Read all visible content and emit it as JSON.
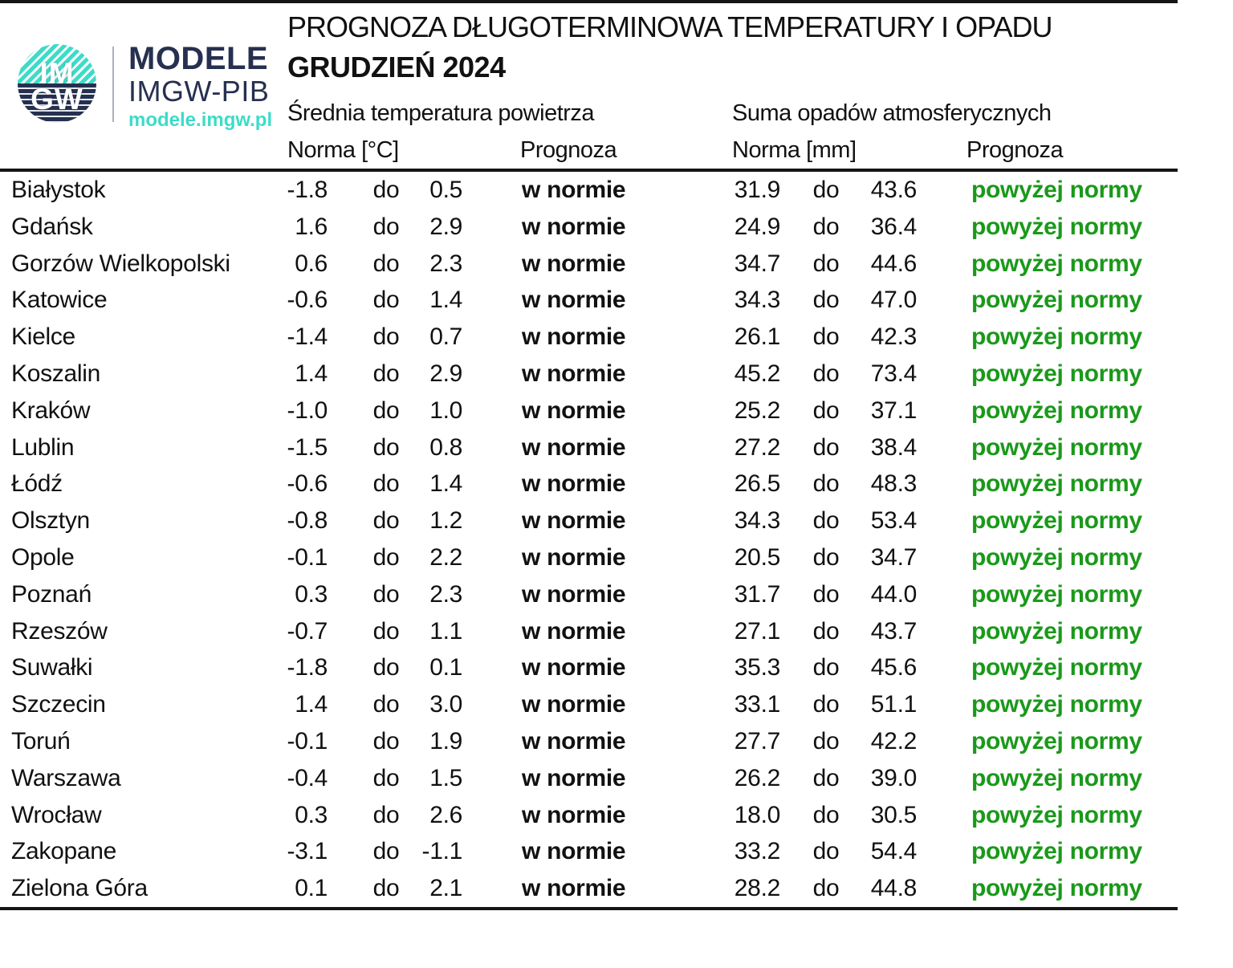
{
  "logo": {
    "im": "IM",
    "gw": "GW",
    "brand": "MODELE",
    "org": "IMGW-PIB",
    "url": "modele.imgw.pl"
  },
  "header": {
    "title": "PROGNOZA DŁUGOTERMINOWA TEMPERATURY I OPADU",
    "subtitle": "GRUDZIEŃ 2024",
    "temp_group": "Średnia temperatura powietrza",
    "precip_group": "Suma opadów atmosferycznych",
    "temp_norm_label": "Norma [°C]",
    "temp_forecast_label": "Prognoza",
    "precip_norm_label": "Norma [mm]",
    "precip_forecast_label": "Prognoza"
  },
  "table": {
    "separator": "do",
    "rows": [
      {
        "city": "Białystok",
        "t_lo": "-1.8",
        "t_hi": "0.5",
        "t_fc": "w normie",
        "p_lo": "31.9",
        "p_hi": "43.6",
        "p_fc": "powyżej normy"
      },
      {
        "city": "Gdańsk",
        "t_lo": "1.6",
        "t_hi": "2.9",
        "t_fc": "w normie",
        "p_lo": "24.9",
        "p_hi": "36.4",
        "p_fc": "powyżej normy"
      },
      {
        "city": "Gorzów Wielkopolski",
        "t_lo": "0.6",
        "t_hi": "2.3",
        "t_fc": "w normie",
        "p_lo": "34.7",
        "p_hi": "44.6",
        "p_fc": "powyżej normy"
      },
      {
        "city": "Katowice",
        "t_lo": "-0.6",
        "t_hi": "1.4",
        "t_fc": "w normie",
        "p_lo": "34.3",
        "p_hi": "47.0",
        "p_fc": "powyżej normy"
      },
      {
        "city": "Kielce",
        "t_lo": "-1.4",
        "t_hi": "0.7",
        "t_fc": "w normie",
        "p_lo": "26.1",
        "p_hi": "42.3",
        "p_fc": "powyżej normy"
      },
      {
        "city": "Koszalin",
        "t_lo": "1.4",
        "t_hi": "2.9",
        "t_fc": "w normie",
        "p_lo": "45.2",
        "p_hi": "73.4",
        "p_fc": "powyżej normy"
      },
      {
        "city": "Kraków",
        "t_lo": "-1.0",
        "t_hi": "1.0",
        "t_fc": "w normie",
        "p_lo": "25.2",
        "p_hi": "37.1",
        "p_fc": "powyżej normy"
      },
      {
        "city": "Lublin",
        "t_lo": "-1.5",
        "t_hi": "0.8",
        "t_fc": "w normie",
        "p_lo": "27.2",
        "p_hi": "38.4",
        "p_fc": "powyżej normy"
      },
      {
        "city": "Łódź",
        "t_lo": "-0.6",
        "t_hi": "1.4",
        "t_fc": "w normie",
        "p_lo": "26.5",
        "p_hi": "48.3",
        "p_fc": "powyżej normy"
      },
      {
        "city": "Olsztyn",
        "t_lo": "-0.8",
        "t_hi": "1.2",
        "t_fc": "w normie",
        "p_lo": "34.3",
        "p_hi": "53.4",
        "p_fc": "powyżej normy"
      },
      {
        "city": "Opole",
        "t_lo": "-0.1",
        "t_hi": "2.2",
        "t_fc": "w normie",
        "p_lo": "20.5",
        "p_hi": "34.7",
        "p_fc": "powyżej normy"
      },
      {
        "city": "Poznań",
        "t_lo": "0.3",
        "t_hi": "2.3",
        "t_fc": "w normie",
        "p_lo": "31.7",
        "p_hi": "44.0",
        "p_fc": "powyżej normy"
      },
      {
        "city": "Rzeszów",
        "t_lo": "-0.7",
        "t_hi": "1.1",
        "t_fc": "w normie",
        "p_lo": "27.1",
        "p_hi": "43.7",
        "p_fc": "powyżej normy"
      },
      {
        "city": "Suwałki",
        "t_lo": "-1.8",
        "t_hi": "0.1",
        "t_fc": "w normie",
        "p_lo": "35.3",
        "p_hi": "45.6",
        "p_fc": "powyżej normy"
      },
      {
        "city": "Szczecin",
        "t_lo": "1.4",
        "t_hi": "3.0",
        "t_fc": "w normie",
        "p_lo": "33.1",
        "p_hi": "51.1",
        "p_fc": "powyżej normy"
      },
      {
        "city": "Toruń",
        "t_lo": "-0.1",
        "t_hi": "1.9",
        "t_fc": "w normie",
        "p_lo": "27.7",
        "p_hi": "42.2",
        "p_fc": "powyżej normy"
      },
      {
        "city": "Warszawa",
        "t_lo": "-0.4",
        "t_hi": "1.5",
        "t_fc": "w normie",
        "p_lo": "26.2",
        "p_hi": "39.0",
        "p_fc": "powyżej normy"
      },
      {
        "city": "Wrocław",
        "t_lo": "0.3",
        "t_hi": "2.6",
        "t_fc": "w normie",
        "p_lo": "18.0",
        "p_hi": "30.5",
        "p_fc": "powyżej normy"
      },
      {
        "city": "Zakopane",
        "t_lo": "-3.1",
        "t_hi": "-1.1",
        "t_fc": "w normie",
        "p_lo": "33.2",
        "p_hi": "54.4",
        "p_fc": "powyżej normy"
      },
      {
        "city": "Zielona Góra",
        "t_lo": "0.1",
        "t_hi": "2.1",
        "t_fc": "w normie",
        "p_lo": "28.2",
        "p_hi": "44.8",
        "p_fc": "powyżej normy"
      }
    ]
  },
  "colors": {
    "green": "#1a991a",
    "navy": "#26304f",
    "teal": "#3cdcc8",
    "rule": "#151515"
  }
}
